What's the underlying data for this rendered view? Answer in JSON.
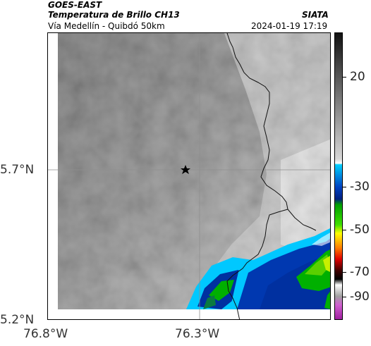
{
  "header": {
    "satellite": "GOES-EAST",
    "product": "Temperatura de Brillo CH13",
    "route": "Vía Medellín - Quibdó 50km",
    "source": "SIATA",
    "timestamp": "2024-01-19 17:19"
  },
  "axes": {
    "x_ticks": [
      "76.8°W",
      "76.3°W"
    ],
    "y_ticks": [
      "5.7°N",
      "5.2°N"
    ]
  },
  "colorbar": {
    "labels": [
      "20",
      "-30",
      "-50",
      "-70",
      "-90"
    ],
    "colors": [
      "#1a1a1a",
      "#9a9a9a",
      "#ffffff",
      "#00c8ff",
      "#0030a0",
      "#00b000",
      "#ffff00",
      "#ff8000",
      "#c00000",
      "#400000",
      "#909090",
      "#c040c0"
    ]
  },
  "marker": {
    "icon": "star-icon"
  }
}
